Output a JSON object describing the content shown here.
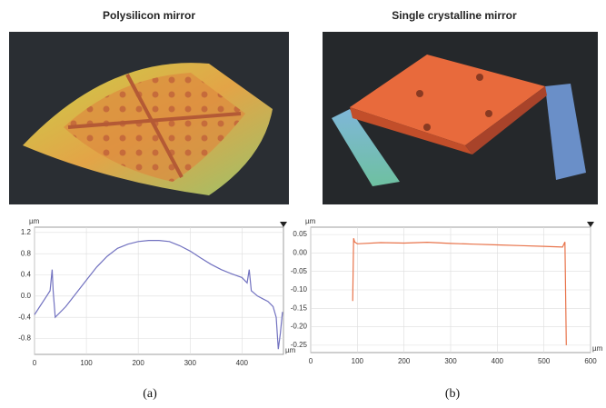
{
  "chart_data": [
    {
      "type": "line",
      "title": "Polysilicon mirror",
      "caption": "(a)",
      "y_label": "µm",
      "x_label": "µm",
      "x": [
        0,
        10,
        20,
        30,
        34,
        36,
        40,
        60,
        80,
        100,
        120,
        140,
        160,
        180,
        200,
        220,
        240,
        260,
        280,
        300,
        320,
        340,
        360,
        380,
        400,
        410,
        414,
        418,
        430,
        440,
        450,
        460,
        466,
        470,
        474,
        478
      ],
      "series": [
        {
          "color": "#7272c0",
          "values": [
            -0.35,
            -0.2,
            -0.05,
            0.1,
            0.5,
            0.1,
            -0.4,
            -0.2,
            0.05,
            0.3,
            0.55,
            0.75,
            0.9,
            0.98,
            1.03,
            1.05,
            1.05,
            1.03,
            0.95,
            0.85,
            0.72,
            0.6,
            0.5,
            0.42,
            0.35,
            0.25,
            0.5,
            0.1,
            0.0,
            -0.05,
            -0.1,
            -0.2,
            -0.4,
            -1.0,
            -0.7,
            -0.3
          ]
        }
      ],
      "xlim": [
        0,
        480
      ],
      "xticks": [
        0,
        100,
        200,
        300,
        400
      ],
      "ylim": [
        -1.1,
        1.3
      ],
      "yticks": [
        1.2,
        0.8,
        0.4,
        {
          "value": 0,
          "label": "0.0"
        },
        -0.4,
        -0.8
      ],
      "grid": true
    },
    {
      "type": "line",
      "title": "Single crystalline mirror",
      "caption": "(b)",
      "y_label": "µm",
      "x_label": "µm",
      "x": [
        90,
        92,
        94,
        100,
        150,
        200,
        250,
        300,
        350,
        400,
        450,
        500,
        540,
        545,
        548
      ],
      "series": [
        {
          "color": "#e8734a",
          "values": [
            -0.13,
            0.04,
            0.03,
            0.025,
            0.028,
            0.027,
            0.029,
            0.026,
            0.024,
            0.022,
            0.02,
            0.018,
            0.016,
            0.03,
            -0.25
          ]
        }
      ],
      "xlim": [
        0,
        600
      ],
      "xticks": [
        0,
        100,
        200,
        300,
        400,
        500,
        600
      ],
      "ylim": [
        -0.27,
        0.07
      ],
      "yticks": [
        0.05,
        {
          "value": 0,
          "label": "0.00"
        },
        -0.05,
        {
          "value": -0.1,
          "label": "-0.10"
        },
        -0.15,
        {
          "value": -0.2,
          "label": "-0.20"
        },
        -0.25
      ],
      "grid": true
    }
  ]
}
